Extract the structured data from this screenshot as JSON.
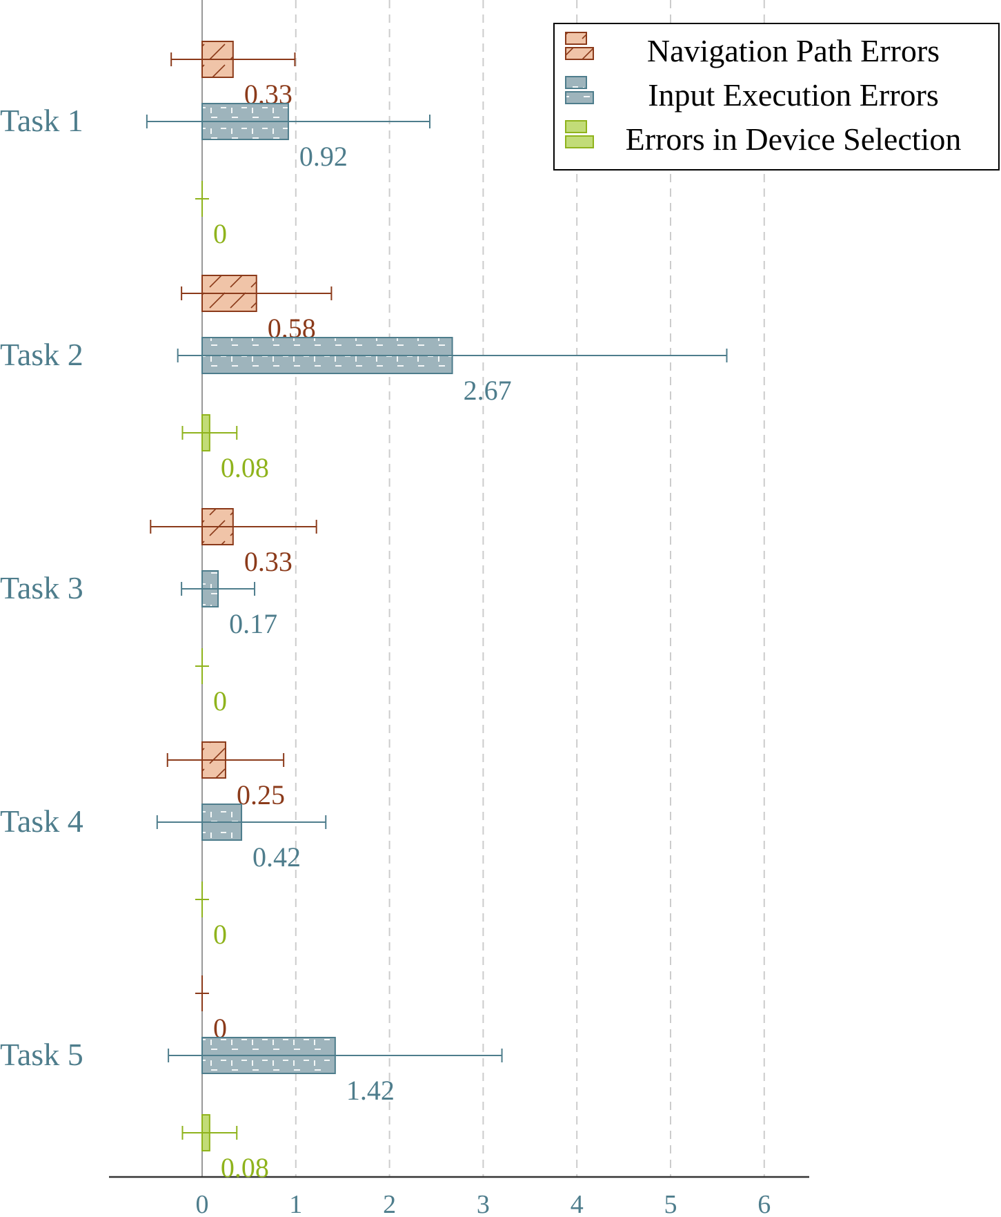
{
  "chart_data": {
    "type": "bar",
    "orientation": "horizontal",
    "categories": [
      "Task 1",
      "Task 2",
      "Task 3",
      "Task 4",
      "Task 5"
    ],
    "series": [
      {
        "name": "Navigation Path Errors",
        "color": "#8b3a1a",
        "fill": "#f0c4a8",
        "pattern": "diagonal-hatch",
        "values": [
          0.33,
          0.58,
          0.33,
          0.25,
          0
        ],
        "labels": [
          "0.33",
          "0.58",
          "0.33",
          "0.25",
          "0"
        ],
        "error_low": [
          -0.33,
          -0.22,
          -0.55,
          -0.37,
          0
        ],
        "error_high": [
          0.99,
          1.38,
          1.22,
          0.87,
          0
        ]
      },
      {
        "name": "Input Execution Errors",
        "color": "#4e7d8c",
        "fill": "#9eb4bc",
        "pattern": "dashed-grid",
        "values": [
          0.92,
          2.67,
          0.17,
          0.42,
          1.42
        ],
        "labels": [
          "0.92",
          "2.67",
          "0.17",
          "0.42",
          "1.42"
        ],
        "error_low": [
          -0.59,
          -0.26,
          -0.22,
          -0.48,
          -0.36
        ],
        "error_high": [
          2.43,
          5.6,
          0.56,
          1.32,
          3.2
        ]
      },
      {
        "name": "Errors in Device Selection",
        "color": "#8fb31c",
        "fill": "#c2dc78",
        "pattern": "solid",
        "values": [
          0,
          0.08,
          0,
          0,
          0.08
        ],
        "labels": [
          "0",
          "0.08",
          "0",
          "0",
          "0.08"
        ],
        "error_low": [
          0,
          -0.21,
          0,
          0,
          -0.21
        ],
        "error_high": [
          0,
          0.37,
          0,
          0,
          0.37
        ]
      }
    ],
    "x_ticks": [
      "0",
      "1",
      "2",
      "3",
      "4",
      "5",
      "6"
    ],
    "xlim": [
      -1,
      6.5
    ],
    "grid": "vertical-dashed",
    "legend_position": "top-right",
    "title": "",
    "xlabel": "",
    "ylabel": ""
  }
}
